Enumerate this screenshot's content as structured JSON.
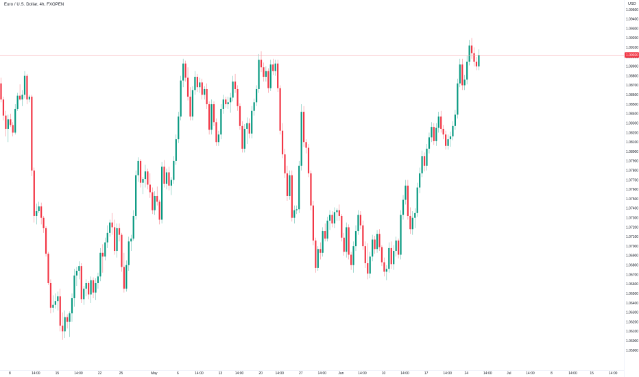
{
  "header": {
    "title": "Euro / U.S. Dollar, 4h, FXOPEN"
  },
  "price_axis": {
    "currency": "USD"
  },
  "last_price": {
    "value": 1.0902,
    "label": "1.09020",
    "color": "#f23645"
  },
  "colors": {
    "up": "#089981",
    "down": "#f23645",
    "last_price_line": "#f7a4ab"
  },
  "chart_data": {
    "type": "candlestick",
    "title": "Euro / U.S. Dollar, 4h, FXOPEN",
    "ylim": [
      1.0585,
      1.0965
    ],
    "y_ticks": [
      1.095,
      1.094,
      1.093,
      1.092,
      1.091,
      1.09,
      1.089,
      1.088,
      1.087,
      1.086,
      1.085,
      1.084,
      1.083,
      1.082,
      1.081,
      1.08,
      1.079,
      1.078,
      1.077,
      1.076,
      1.075,
      1.074,
      1.073,
      1.072,
      1.071,
      1.07,
      1.069,
      1.068,
      1.067,
      1.066,
      1.065,
      1.064,
      1.063,
      1.062,
      1.061,
      1.06,
      1.059
    ],
    "y_tick_labels": [
      "1.09500",
      "1.09400",
      "1.09300",
      "1.09200",
      "1.09100",
      "1.09000",
      "1.08900",
      "1.08800",
      "1.08700",
      "1.08600",
      "1.08500",
      "1.08400",
      "1.08300",
      "1.08200",
      "1.08100",
      "1.08000",
      "1.07900",
      "1.07800",
      "1.07700",
      "1.07600",
      "1.07500",
      "1.07400",
      "1.07300",
      "1.07200",
      "1.07100",
      "1.07000",
      "1.06900",
      "1.06800",
      "1.06700",
      "1.06600",
      "1.06500",
      "1.06400",
      "1.06300",
      "1.06200",
      "1.06100",
      "1.06000",
      "1.05900"
    ],
    "x_ticks": [
      {
        "label": "8",
        "bar": 2
      },
      {
        "label": "14:00",
        "bar": 13
      },
      {
        "label": "15",
        "bar": 22
      },
      {
        "label": "14:00",
        "bar": 31
      },
      {
        "label": "22",
        "bar": 40
      },
      {
        "label": "25",
        "bar": 49
      },
      {
        "label": "May",
        "bar": 63
      },
      {
        "label": "6",
        "bar": 73
      },
      {
        "label": "14:00",
        "bar": 82
      },
      {
        "label": "13",
        "bar": 91
      },
      {
        "label": "14:00",
        "bar": 99
      },
      {
        "label": "20",
        "bar": 108
      },
      {
        "label": "14:00",
        "bar": 116
      },
      {
        "label": "27",
        "bar": 125
      },
      {
        "label": "14:00",
        "bar": 134
      },
      {
        "label": "Jun",
        "bar": 142
      },
      {
        "label": "14:00",
        "bar": 151
      },
      {
        "label": "10",
        "bar": 160
      },
      {
        "label": "14:00",
        "bar": 169
      },
      {
        "label": "17",
        "bar": 178
      },
      {
        "label": "14:00",
        "bar": 187
      },
      {
        "label": "24",
        "bar": 195
      },
      {
        "label": "14:00",
        "bar": 204
      },
      {
        "label": "Jul",
        "bar": 213
      },
      {
        "label": "14:00",
        "bar": 222
      },
      {
        "label": "8",
        "bar": 231
      },
      {
        "label": "14:00",
        "bar": 240
      },
      {
        "label": "15",
        "bar": 248
      },
      {
        "label": "14:00",
        "bar": 257
      }
    ],
    "candles": [
      [
        1.0872,
        1.0878,
        1.0852,
        1.0855
      ],
      [
        1.0855,
        1.0858,
        1.0833,
        1.0838
      ],
      [
        1.0838,
        1.0843,
        1.0816,
        1.0824
      ],
      [
        1.0824,
        1.0839,
        1.081,
        1.0834
      ],
      [
        1.0834,
        1.084,
        1.0826,
        1.0828
      ],
      [
        1.0828,
        1.0831,
        1.0816,
        1.082
      ],
      [
        1.082,
        1.085,
        1.0818,
        1.0845
      ],
      [
        1.0845,
        1.0862,
        1.0843,
        1.0859
      ],
      [
        1.0859,
        1.0871,
        1.0854,
        1.0855
      ],
      [
        1.0855,
        1.0865,
        1.0848,
        1.086
      ],
      [
        1.086,
        1.0885,
        1.0856,
        1.088
      ],
      [
        1.088,
        1.0882,
        1.085,
        1.0855
      ],
      [
        1.0855,
        1.086,
        1.0852,
        1.0858
      ],
      [
        1.0858,
        1.086,
        1.0774,
        1.078
      ],
      [
        1.078,
        1.0783,
        1.0725,
        1.0732
      ],
      [
        1.0732,
        1.0745,
        1.0723,
        1.0737
      ],
      [
        1.0737,
        1.0747,
        1.0735,
        1.0742
      ],
      [
        1.0742,
        1.0746,
        1.0723,
        1.073
      ],
      [
        1.073,
        1.0732,
        1.0714,
        1.0719
      ],
      [
        1.0719,
        1.0721,
        1.0689,
        1.0692
      ],
      [
        1.0692,
        1.0694,
        1.0659,
        1.0661
      ],
      [
        1.0661,
        1.0665,
        1.0629,
        1.0635
      ],
      [
        1.0635,
        1.0648,
        1.063,
        1.0638
      ],
      [
        1.0638,
        1.065,
        1.0634,
        1.0642
      ],
      [
        1.0642,
        1.0652,
        1.0632,
        1.0647
      ],
      [
        1.0647,
        1.0655,
        1.061,
        1.0616
      ],
      [
        1.0616,
        1.063,
        1.0601,
        1.061
      ],
      [
        1.061,
        1.0632,
        1.0603,
        1.0625
      ],
      [
        1.0625,
        1.0628,
        1.0613,
        1.062
      ],
      [
        1.062,
        1.0631,
        1.0604,
        1.0629
      ],
      [
        1.0629,
        1.065,
        1.062,
        1.0645
      ],
      [
        1.0645,
        1.0676,
        1.0636,
        1.0669
      ],
      [
        1.0669,
        1.0678,
        1.0658,
        1.0674
      ],
      [
        1.0674,
        1.0684,
        1.0665,
        1.0679
      ],
      [
        1.0679,
        1.0682,
        1.064,
        1.0644
      ],
      [
        1.0644,
        1.0658,
        1.0638,
        1.0655
      ],
      [
        1.0655,
        1.0665,
        1.0647,
        1.0661
      ],
      [
        1.0661,
        1.0663,
        1.0644,
        1.0649
      ],
      [
        1.0649,
        1.0668,
        1.064,
        1.0664
      ],
      [
        1.0664,
        1.0667,
        1.0645,
        1.0651
      ],
      [
        1.0651,
        1.0666,
        1.0643,
        1.0661
      ],
      [
        1.0661,
        1.0672,
        1.0655,
        1.0668
      ],
      [
        1.0668,
        1.0698,
        1.0663,
        1.0693
      ],
      [
        1.0693,
        1.0702,
        1.0672,
        1.0689
      ],
      [
        1.0689,
        1.0709,
        1.0685,
        1.0704
      ],
      [
        1.0704,
        1.0722,
        1.0698,
        1.0714
      ],
      [
        1.0714,
        1.0728,
        1.071,
        1.0725
      ],
      [
        1.0725,
        1.0735,
        1.0712,
        1.072
      ],
      [
        1.072,
        1.0728,
        1.0691,
        1.0695
      ],
      [
        1.0695,
        1.0724,
        1.0688,
        1.0719
      ],
      [
        1.0719,
        1.0724,
        1.0705,
        1.0712
      ],
      [
        1.0712,
        1.0714,
        1.0673,
        1.0678
      ],
      [
        1.0678,
        1.0693,
        1.0651,
        1.0655
      ],
      [
        1.0655,
        1.0685,
        1.0652,
        1.068
      ],
      [
        1.068,
        1.071,
        1.0674,
        1.0705
      ],
      [
        1.0705,
        1.0712,
        1.0695,
        1.0708
      ],
      [
        1.0708,
        1.0738,
        1.0706,
        1.0732
      ],
      [
        1.0732,
        1.078,
        1.0728,
        1.0775
      ],
      [
        1.0775,
        1.0794,
        1.0768,
        1.079
      ],
      [
        1.079,
        1.0792,
        1.0762,
        1.0767
      ],
      [
        1.0767,
        1.0773,
        1.0755,
        1.0771
      ],
      [
        1.0771,
        1.0786,
        1.0762,
        1.0779
      ],
      [
        1.0779,
        1.0782,
        1.076,
        1.0765
      ],
      [
        1.0765,
        1.0777,
        1.0751,
        1.0757
      ],
      [
        1.0757,
        1.0762,
        1.0734,
        1.0738
      ],
      [
        1.0738,
        1.0758,
        1.0733,
        1.0753
      ],
      [
        1.0753,
        1.0763,
        1.0743,
        1.0747
      ],
      [
        1.0747,
        1.0749,
        1.0723,
        1.0728
      ],
      [
        1.0728,
        1.0789,
        1.0724,
        1.0784
      ],
      [
        1.0784,
        1.0791,
        1.0762,
        1.0766
      ],
      [
        1.0766,
        1.0782,
        1.076,
        1.0778
      ],
      [
        1.0778,
        1.0784,
        1.0759,
        1.0764
      ],
      [
        1.0764,
        1.0773,
        1.0754,
        1.077
      ],
      [
        1.077,
        1.0795,
        1.0766,
        1.079
      ],
      [
        1.079,
        1.0818,
        1.0786,
        1.0813
      ],
      [
        1.0813,
        1.0842,
        1.0809,
        1.0837
      ],
      [
        1.0837,
        1.088,
        1.0833,
        1.0875
      ],
      [
        1.0875,
        1.0898,
        1.0868,
        1.0893
      ],
      [
        1.0893,
        1.0896,
        1.0874,
        1.0878
      ],
      [
        1.0878,
        1.0889,
        1.0854,
        1.0858
      ],
      [
        1.0858,
        1.0868,
        1.0833,
        1.0837
      ],
      [
        1.0837,
        1.0869,
        1.0833,
        1.0865
      ],
      [
        1.0865,
        1.0885,
        1.086,
        1.0879
      ],
      [
        1.0879,
        1.0882,
        1.0863,
        1.0868
      ],
      [
        1.0868,
        1.0878,
        1.0862,
        1.0873
      ],
      [
        1.0873,
        1.0877,
        1.0855,
        1.086
      ],
      [
        1.086,
        1.0869,
        1.0855,
        1.0866
      ],
      [
        1.0866,
        1.0872,
        1.0845,
        1.085
      ],
      [
        1.085,
        1.0853,
        1.0818,
        1.0823
      ],
      [
        1.0823,
        1.0855,
        1.0818,
        1.085
      ],
      [
        1.085,
        1.0853,
        1.0827,
        1.0831
      ],
      [
        1.0831,
        1.0835,
        1.0806,
        1.081
      ],
      [
        1.081,
        1.0822,
        1.0806,
        1.0818
      ],
      [
        1.0818,
        1.085,
        1.0813,
        1.0845
      ],
      [
        1.0845,
        1.086,
        1.084,
        1.0855
      ],
      [
        1.0855,
        1.0858,
        1.0846,
        1.085
      ],
      [
        1.085,
        1.0858,
        1.0845,
        1.0852
      ],
      [
        1.0852,
        1.0862,
        1.0841,
        1.0857
      ],
      [
        1.0857,
        1.088,
        1.0853,
        1.0874
      ],
      [
        1.0874,
        1.0882,
        1.0862,
        1.0866
      ],
      [
        1.0866,
        1.087,
        1.0843,
        1.0848
      ],
      [
        1.0848,
        1.0851,
        1.0823,
        1.0827
      ],
      [
        1.0827,
        1.0832,
        1.0799,
        1.0803
      ],
      [
        1.0803,
        1.0829,
        1.0799,
        1.0824
      ],
      [
        1.0824,
        1.0836,
        1.0808,
        1.083
      ],
      [
        1.083,
        1.0835,
        1.0814,
        1.0819
      ],
      [
        1.0819,
        1.0848,
        1.0814,
        1.0843
      ],
      [
        1.0843,
        1.0856,
        1.0838,
        1.0852
      ],
      [
        1.0852,
        1.087,
        1.0848,
        1.0866
      ],
      [
        1.0866,
        1.0903,
        1.0862,
        1.0897
      ],
      [
        1.0897,
        1.0906,
        1.0884,
        1.0889
      ],
      [
        1.0889,
        1.0894,
        1.0874,
        1.0879
      ],
      [
        1.0879,
        1.089,
        1.0874,
        1.0885
      ],
      [
        1.0885,
        1.0888,
        1.0862,
        1.0867
      ],
      [
        1.0867,
        1.0897,
        1.0864,
        1.0892
      ],
      [
        1.0892,
        1.0898,
        1.0881,
        1.0885
      ],
      [
        1.0885,
        1.0897,
        1.088,
        1.0893
      ],
      [
        1.0893,
        1.0897,
        1.0863,
        1.0867
      ],
      [
        1.0867,
        1.087,
        1.0818,
        1.0822
      ],
      [
        1.0822,
        1.083,
        1.0793,
        1.0797
      ],
      [
        1.0797,
        1.0803,
        1.0772,
        1.0777
      ],
      [
        1.0777,
        1.0785,
        1.0748,
        1.0753
      ],
      [
        1.0753,
        1.078,
        1.0749,
        1.0775
      ],
      [
        1.0775,
        1.078,
        1.0726,
        1.073
      ],
      [
        1.073,
        1.0743,
        1.0724,
        1.0738
      ],
      [
        1.0738,
        1.0743,
        1.0734,
        1.0739
      ],
      [
        1.0739,
        1.079,
        1.0735,
        1.0785
      ],
      [
        1.0785,
        1.085,
        1.078,
        1.0842
      ],
      [
        1.0842,
        1.0848,
        1.0805,
        1.081
      ],
      [
        1.081,
        1.0813,
        1.0798,
        1.0804
      ],
      [
        1.0804,
        1.0808,
        1.0773,
        1.0777
      ],
      [
        1.0777,
        1.078,
        1.0738,
        1.0743
      ],
      [
        1.0743,
        1.0748,
        1.0701,
        1.0706
      ],
      [
        1.0706,
        1.0709,
        1.0672,
        1.0677
      ],
      [
        1.0677,
        1.07,
        1.0674,
        1.0697
      ],
      [
        1.0697,
        1.0704,
        1.0686,
        1.0693
      ],
      [
        1.0693,
        1.072,
        1.0689,
        1.0716
      ],
      [
        1.0716,
        1.0724,
        1.0705,
        1.0708
      ],
      [
        1.0708,
        1.0731,
        1.0705,
        1.0727
      ],
      [
        1.0727,
        1.0738,
        1.0717,
        1.0733
      ],
      [
        1.0733,
        1.0737,
        1.072,
        1.0724
      ],
      [
        1.0724,
        1.0741,
        1.0719,
        1.0736
      ],
      [
        1.0736,
        1.074,
        1.0727,
        1.0738
      ],
      [
        1.0738,
        1.0744,
        1.0727,
        1.0732
      ],
      [
        1.0732,
        1.0734,
        1.0705,
        1.0709
      ],
      [
        1.0709,
        1.0714,
        1.069,
        1.0694
      ],
      [
        1.0694,
        1.0725,
        1.0688,
        1.072
      ],
      [
        1.072,
        1.0723,
        1.0686,
        1.0691
      ],
      [
        1.0691,
        1.0694,
        1.0675,
        1.068
      ],
      [
        1.068,
        1.0705,
        1.0672,
        1.07
      ],
      [
        1.07,
        1.0722,
        1.0695,
        1.0716
      ],
      [
        1.0716,
        1.0738,
        1.0712,
        1.0733
      ],
      [
        1.0733,
        1.0737,
        1.0718,
        1.0722
      ],
      [
        1.0722,
        1.0727,
        1.0696,
        1.07
      ],
      [
        1.07,
        1.0705,
        1.0677,
        1.0682
      ],
      [
        1.0682,
        1.0703,
        1.0665,
        1.0671
      ],
      [
        1.0671,
        1.0694,
        1.0666,
        1.0689
      ],
      [
        1.0689,
        1.0712,
        1.0684,
        1.0707
      ],
      [
        1.0707,
        1.0711,
        1.0692,
        1.0697
      ],
      [
        1.0697,
        1.0717,
        1.0693,
        1.0713
      ],
      [
        1.0713,
        1.0718,
        1.0695,
        1.0699
      ],
      [
        1.0699,
        1.0701,
        1.0679,
        1.0683
      ],
      [
        1.0683,
        1.0688,
        1.0668,
        1.0673
      ],
      [
        1.0673,
        1.068,
        1.0664,
        1.0676
      ],
      [
        1.0676,
        1.0704,
        1.0672,
        1.0698
      ],
      [
        1.0698,
        1.0705,
        1.0676,
        1.0681
      ],
      [
        1.0681,
        1.0701,
        1.0675,
        1.0695
      ],
      [
        1.0695,
        1.071,
        1.0689,
        1.0706
      ],
      [
        1.0706,
        1.0708,
        1.0687,
        1.0691
      ],
      [
        1.0691,
        1.0738,
        1.0686,
        1.0733
      ],
      [
        1.0733,
        1.0754,
        1.0728,
        1.0749
      ],
      [
        1.0749,
        1.077,
        1.0744,
        1.0764
      ],
      [
        1.0764,
        1.077,
        1.0728,
        1.0732
      ],
      [
        1.0732,
        1.0741,
        1.0713,
        1.0718
      ],
      [
        1.0718,
        1.0737,
        1.0712,
        1.073
      ],
      [
        1.073,
        1.074,
        1.0719,
        1.0735
      ],
      [
        1.0735,
        1.0767,
        1.0731,
        1.0762
      ],
      [
        1.0762,
        1.0783,
        1.0756,
        1.0777
      ],
      [
        1.0777,
        1.0801,
        1.0773,
        1.0795
      ],
      [
        1.0795,
        1.0799,
        1.0779,
        1.0785
      ],
      [
        1.0785,
        1.0808,
        1.078,
        1.0803
      ],
      [
        1.0803,
        1.082,
        1.0798,
        1.0815
      ],
      [
        1.0815,
        1.0831,
        1.081,
        1.0826
      ],
      [
        1.0826,
        1.083,
        1.0807,
        1.0811
      ],
      [
        1.0811,
        1.083,
        1.0806,
        1.0825
      ],
      [
        1.0825,
        1.0842,
        1.082,
        1.0837
      ],
      [
        1.0837,
        1.0843,
        1.082,
        1.0824
      ],
      [
        1.0824,
        1.0828,
        1.0813,
        1.0818
      ],
      [
        1.0818,
        1.0822,
        1.0802,
        1.0806
      ],
      [
        1.0806,
        1.0818,
        1.0802,
        1.0813
      ],
      [
        1.0813,
        1.0821,
        1.0805,
        1.0816
      ],
      [
        1.0816,
        1.0832,
        1.0812,
        1.0827
      ],
      [
        1.0827,
        1.0844,
        1.0823,
        1.0839
      ],
      [
        1.0839,
        1.0877,
        1.0835,
        1.0872
      ],
      [
        1.0872,
        1.0898,
        1.0868,
        1.0892
      ],
      [
        1.0892,
        1.0898,
        1.0865,
        1.087
      ],
      [
        1.087,
        1.0881,
        1.0865,
        1.0876
      ],
      [
        1.0876,
        1.0901,
        1.0871,
        1.0895
      ],
      [
        1.0895,
        1.0918,
        1.0891,
        1.0912
      ],
      [
        1.0912,
        1.092,
        1.0898,
        1.0904
      ],
      [
        1.0904,
        1.091,
        1.089,
        1.0895
      ],
      [
        1.0895,
        1.09,
        1.0886,
        1.089
      ],
      [
        1.089,
        1.0908,
        1.0886,
        1.0902
      ]
    ],
    "candle_format": [
      "open",
      "high",
      "low",
      "close"
    ],
    "grid": false,
    "legend": "none"
  }
}
